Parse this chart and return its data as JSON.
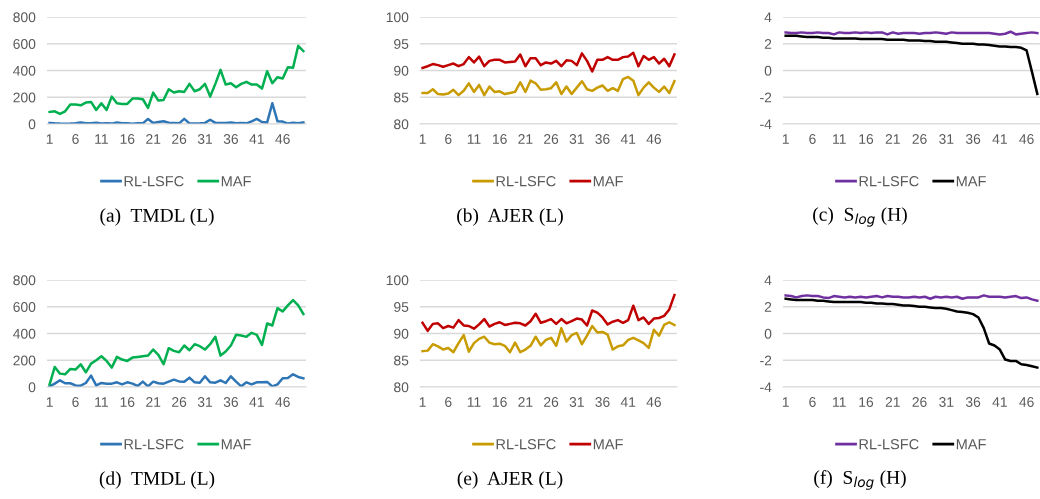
{
  "chart_data": [
    {
      "type": "line",
      "title": "(a)  TMDL (L)",
      "xlim": [
        0.5,
        50.5
      ],
      "xticks": [
        1,
        6,
        11,
        16,
        21,
        26,
        31,
        36,
        41,
        46
      ],
      "ylim": [
        0,
        800
      ],
      "yticks": [
        0,
        200,
        400,
        600,
        800
      ],
      "grid": "y",
      "legend": "bottom",
      "x": [
        1,
        2,
        3,
        4,
        5,
        6,
        7,
        8,
        9,
        10,
        11,
        12,
        13,
        14,
        15,
        16,
        17,
        18,
        19,
        20,
        21,
        22,
        23,
        24,
        25,
        26,
        27,
        28,
        29,
        30,
        31,
        32,
        33,
        34,
        35,
        36,
        37,
        38,
        39,
        40,
        41,
        42,
        43,
        44,
        45,
        46,
        47,
        48,
        49,
        50
      ],
      "series": [
        {
          "name": "RL-LSFC",
          "color": "#2e75b6",
          "values": [
            8,
            5,
            3,
            2,
            3,
            5,
            12,
            5,
            5,
            10,
            3,
            5,
            3,
            12,
            6,
            5,
            2,
            5,
            5,
            38,
            8,
            15,
            20,
            10,
            8,
            5,
            38,
            5,
            3,
            5,
            8,
            32,
            8,
            8,
            8,
            12,
            5,
            8,
            5,
            20,
            38,
            15,
            12,
            155,
            20,
            18,
            3,
            10,
            5,
            12
          ]
        },
        {
          "name": "MAF",
          "color": "#00b050",
          "values": [
            90,
            95,
            75,
            95,
            145,
            145,
            140,
            160,
            165,
            105,
            155,
            105,
            205,
            155,
            150,
            150,
            190,
            190,
            185,
            120,
            235,
            175,
            180,
            260,
            235,
            245,
            240,
            300,
            245,
            260,
            300,
            205,
            300,
            405,
            295,
            305,
            275,
            300,
            315,
            295,
            295,
            265,
            395,
            305,
            350,
            340,
            425,
            420,
            585,
            545
          ]
        }
      ]
    },
    {
      "type": "line",
      "title": "(b)  AJER (L)",
      "xlim": [
        0.5,
        50.5
      ],
      "xticks": [
        1,
        6,
        11,
        16,
        21,
        26,
        31,
        36,
        41,
        46
      ],
      "ylim": [
        80,
        100
      ],
      "yticks": [
        80,
        85,
        90,
        95,
        100
      ],
      "grid": "y",
      "legend": "bottom",
      "x": [
        1,
        2,
        3,
        4,
        5,
        6,
        7,
        8,
        9,
        10,
        11,
        12,
        13,
        14,
        15,
        16,
        17,
        18,
        19,
        20,
        21,
        22,
        23,
        24,
        25,
        26,
        27,
        28,
        29,
        30,
        31,
        32,
        33,
        34,
        35,
        36,
        37,
        38,
        39,
        40,
        41,
        42,
        43,
        44,
        45,
        46,
        47,
        48,
        49,
        50
      ],
      "series": [
        {
          "name": "RL-LSFC",
          "color": "#c89b00",
          "values": [
            85.8,
            85.8,
            86.5,
            85.6,
            85.5,
            85.7,
            86.4,
            85.4,
            86.2,
            87.6,
            86.0,
            87.3,
            85.4,
            87.0,
            86.0,
            86.1,
            85.6,
            85.8,
            86.0,
            87.8,
            86.0,
            88.1,
            87.6,
            86.4,
            86.5,
            86.7,
            87.8,
            85.6,
            87.0,
            85.6,
            86.8,
            88.0,
            86.5,
            86.2,
            86.8,
            87.2,
            86.2,
            86.7,
            86.2,
            88.4,
            88.8,
            88.1,
            85.4,
            86.8,
            87.8,
            86.8,
            86.0,
            87.0,
            85.8,
            88.0
          ]
        },
        {
          "name": "MAF",
          "color": "#c00000",
          "values": [
            90.5,
            90.8,
            91.2,
            91.0,
            90.7,
            91.0,
            91.3,
            90.8,
            91.2,
            92.5,
            91.5,
            92.6,
            90.8,
            91.8,
            92.0,
            92.0,
            91.5,
            91.6,
            91.7,
            93.0,
            90.8,
            92.3,
            92.3,
            91.0,
            91.5,
            91.3,
            91.8,
            90.8,
            91.9,
            91.8,
            91.0,
            93.2,
            91.8,
            89.8,
            92.0,
            92.0,
            92.5,
            92.0,
            92.0,
            92.5,
            92.6,
            93.3,
            90.8,
            92.7,
            92.0,
            92.5,
            91.3,
            92.2,
            90.8,
            93.0
          ]
        }
      ]
    },
    {
      "type": "line",
      "title": "(c)  S$_{log}$ (H)",
      "xlim": [
        0.5,
        48.5
      ],
      "xticks": [
        1,
        6,
        11,
        16,
        21,
        26,
        31,
        36,
        41,
        46
      ],
      "ylim": [
        -4,
        4
      ],
      "yticks": [
        -4,
        -2,
        0,
        2,
        4
      ],
      "grid": "y",
      "legend": "bottom",
      "x": [
        1,
        2,
        3,
        4,
        5,
        6,
        7,
        8,
        9,
        10,
        11,
        12,
        13,
        14,
        15,
        16,
        17,
        18,
        19,
        20,
        21,
        22,
        23,
        24,
        25,
        26,
        27,
        28,
        29,
        30,
        31,
        32,
        33,
        34,
        35,
        36,
        37,
        38,
        39,
        40,
        41,
        42,
        43,
        44,
        45,
        46,
        47,
        48
      ],
      "series": [
        {
          "name": "RL-LSFC",
          "color": "#7030a0",
          "values": [
            2.85,
            2.8,
            2.8,
            2.85,
            2.8,
            2.8,
            2.85,
            2.8,
            2.8,
            2.7,
            2.85,
            2.8,
            2.8,
            2.85,
            2.8,
            2.85,
            2.8,
            2.85,
            2.85,
            2.7,
            2.85,
            2.75,
            2.8,
            2.8,
            2.8,
            2.75,
            2.8,
            2.8,
            2.85,
            2.8,
            2.75,
            2.85,
            2.8,
            2.8,
            2.8,
            2.8,
            2.8,
            2.8,
            2.8,
            2.75,
            2.7,
            2.75,
            2.9,
            2.7,
            2.75,
            2.8,
            2.85,
            2.8
          ]
        },
        {
          "name": "MAF",
          "color": "#000000",
          "values": [
            2.6,
            2.6,
            2.6,
            2.55,
            2.5,
            2.5,
            2.5,
            2.45,
            2.45,
            2.4,
            2.4,
            2.4,
            2.4,
            2.4,
            2.35,
            2.35,
            2.35,
            2.35,
            2.35,
            2.3,
            2.3,
            2.3,
            2.3,
            2.25,
            2.25,
            2.25,
            2.2,
            2.2,
            2.15,
            2.15,
            2.15,
            2.1,
            2.05,
            2.0,
            2.0,
            2.0,
            1.95,
            1.95,
            1.9,
            1.85,
            1.8,
            1.8,
            1.75,
            1.75,
            1.7,
            1.5,
            -0.1,
            -1.75
          ]
        }
      ]
    },
    {
      "type": "line",
      "title": "(d)  TMDL (L)",
      "xlim": [
        0.5,
        50.5
      ],
      "xticks": [
        1,
        6,
        11,
        16,
        21,
        26,
        31,
        36,
        41,
        46
      ],
      "ylim": [
        0,
        800
      ],
      "yticks": [
        0,
        200,
        400,
        600,
        800
      ],
      "grid": "y",
      "legend": "bottom",
      "x": [
        1,
        2,
        3,
        4,
        5,
        6,
        7,
        8,
        9,
        10,
        11,
        12,
        13,
        14,
        15,
        16,
        17,
        18,
        19,
        20,
        21,
        22,
        23,
        24,
        25,
        26,
        27,
        28,
        29,
        30,
        31,
        32,
        33,
        34,
        35,
        36,
        37,
        38,
        39,
        40,
        41,
        42,
        43,
        44,
        45,
        46,
        47,
        48,
        49,
        50
      ],
      "series": [
        {
          "name": "RL-LSFC",
          "color": "#2e75b6",
          "values": [
            5,
            25,
            50,
            28,
            28,
            12,
            10,
            30,
            85,
            12,
            30,
            25,
            25,
            35,
            20,
            35,
            25,
            8,
            40,
            5,
            40,
            28,
            25,
            40,
            55,
            42,
            40,
            70,
            35,
            32,
            80,
            35,
            32,
            50,
            30,
            80,
            40,
            5,
            35,
            20,
            35,
            35,
            38,
            5,
            20,
            65,
            68,
            95,
            75,
            65
          ]
        },
        {
          "name": "MAF",
          "color": "#00b050",
          "values": [
            20,
            150,
            100,
            95,
            135,
            130,
            170,
            110,
            175,
            200,
            230,
            195,
            145,
            225,
            205,
            195,
            220,
            225,
            230,
            235,
            280,
            240,
            170,
            290,
            270,
            260,
            310,
            275,
            320,
            305,
            280,
            320,
            375,
            235,
            265,
            310,
            390,
            385,
            375,
            405,
            390,
            315,
            475,
            460,
            590,
            565,
            610,
            650,
            610,
            545
          ]
        }
      ]
    },
    {
      "type": "line",
      "title": "(e)  AJER (L)",
      "xlim": [
        0.5,
        50.5
      ],
      "xticks": [
        1,
        6,
        11,
        16,
        21,
        26,
        31,
        36,
        41,
        46
      ],
      "ylim": [
        80,
        100
      ],
      "yticks": [
        80,
        85,
        90,
        95,
        100
      ],
      "grid": "y",
      "legend": "bottom",
      "x": [
        1,
        2,
        3,
        4,
        5,
        6,
        7,
        8,
        9,
        10,
        11,
        12,
        13,
        14,
        15,
        16,
        17,
        18,
        19,
        20,
        21,
        22,
        23,
        24,
        25,
        26,
        27,
        28,
        29,
        30,
        31,
        32,
        33,
        34,
        35,
        36,
        37,
        38,
        39,
        40,
        41,
        42,
        43,
        44,
        45,
        46,
        47,
        48,
        49,
        50
      ],
      "series": [
        {
          "name": "RL-LSFC",
          "color": "#c89b00",
          "values": [
            86.7,
            86.8,
            88.0,
            87.6,
            87.0,
            87.3,
            86.5,
            88.2,
            89.7,
            86.6,
            88.2,
            89.0,
            89.4,
            88.3,
            88.0,
            88.1,
            87.7,
            86.5,
            88.3,
            86.5,
            87.0,
            87.7,
            89.4,
            87.8,
            88.8,
            89.2,
            87.7,
            91.0,
            88.5,
            89.7,
            90.1,
            88.0,
            89.6,
            91.4,
            90.2,
            90.3,
            89.8,
            87.0,
            87.6,
            87.8,
            88.8,
            89.2,
            88.7,
            88.2,
            87.3,
            90.7,
            89.6,
            91.6,
            92.1,
            91.6
          ]
        },
        {
          "name": "MAF",
          "color": "#c00000",
          "values": [
            92.0,
            90.5,
            91.8,
            91.9,
            91.0,
            91.4,
            91.1,
            92.5,
            91.5,
            91.4,
            90.9,
            91.7,
            92.7,
            91.3,
            91.8,
            92.1,
            91.6,
            91.8,
            92.0,
            91.9,
            91.5,
            92.3,
            93.7,
            92.0,
            92.3,
            92.7,
            91.8,
            92.7,
            91.9,
            92.3,
            92.8,
            92.6,
            91.5,
            94.3,
            93.9,
            93.0,
            91.7,
            92.2,
            92.5,
            92.0,
            92.5,
            95.2,
            92.5,
            93.0,
            91.8,
            92.8,
            92.9,
            93.3,
            94.5,
            97.2
          ]
        }
      ]
    },
    {
      "type": "line",
      "title": "(f)  S$_{log}$ (H)",
      "xlim": [
        0.5,
        48.5
      ],
      "xticks": [
        1,
        6,
        11,
        16,
        21,
        26,
        31,
        36,
        41,
        46
      ],
      "ylim": [
        -4,
        4
      ],
      "yticks": [
        -4,
        -2,
        0,
        2,
        4
      ],
      "grid": "y",
      "legend": "bottom",
      "x": [
        1,
        2,
        3,
        4,
        5,
        6,
        7,
        8,
        9,
        10,
        11,
        12,
        13,
        14,
        15,
        16,
        17,
        18,
        19,
        20,
        21,
        22,
        23,
        24,
        25,
        26,
        27,
        28,
        29,
        30,
        31,
        32,
        33,
        34,
        35,
        36,
        37,
        38,
        39,
        40,
        41,
        42,
        43,
        44,
        45,
        46,
        47,
        48
      ],
      "series": [
        {
          "name": "RL-LSFC",
          "color": "#7030a0",
          "values": [
            2.85,
            2.8,
            2.7,
            2.8,
            2.85,
            2.8,
            2.8,
            2.7,
            2.65,
            2.8,
            2.75,
            2.7,
            2.75,
            2.7,
            2.75,
            2.7,
            2.75,
            2.8,
            2.7,
            2.8,
            2.75,
            2.75,
            2.7,
            2.7,
            2.75,
            2.7,
            2.75,
            2.6,
            2.75,
            2.7,
            2.75,
            2.7,
            2.75,
            2.6,
            2.7,
            2.7,
            2.7,
            2.85,
            2.75,
            2.75,
            2.75,
            2.7,
            2.75,
            2.8,
            2.65,
            2.7,
            2.55,
            2.45
          ]
        },
        {
          "name": "MAF",
          "color": "#000000",
          "values": [
            2.6,
            2.55,
            2.5,
            2.5,
            2.5,
            2.5,
            2.45,
            2.45,
            2.4,
            2.35,
            2.35,
            2.35,
            2.35,
            2.35,
            2.35,
            2.3,
            2.3,
            2.25,
            2.25,
            2.2,
            2.2,
            2.15,
            2.1,
            2.1,
            2.05,
            2.0,
            2.0,
            1.95,
            1.9,
            1.9,
            1.85,
            1.75,
            1.65,
            1.6,
            1.55,
            1.45,
            1.2,
            0.4,
            -0.75,
            -0.9,
            -1.2,
            -1.95,
            -2.05,
            -2.05,
            -2.3,
            -2.35,
            -2.45,
            -2.55
          ]
        }
      ]
    }
  ]
}
